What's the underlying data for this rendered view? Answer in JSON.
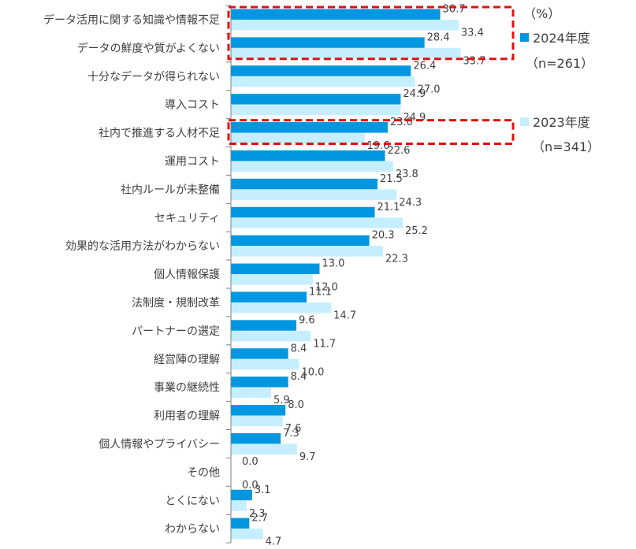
{
  "chart_data": {
    "type": "bar",
    "orientation": "horizontal",
    "unit_label": "（%）",
    "categories": [
      "データ活用に関する知識や情報不足",
      "データの鮮度や質がよくない",
      "十分なデータが得られない",
      "導入コスト",
      "社内で推進する人材不足",
      "運用コスト",
      "社内ルールが未整備",
      "セキュリティ",
      "効果的な活用方法がわからない",
      "個人情報保護",
      "法制度・規制改革",
      "パートナーの選定",
      "経営陣の理解",
      "事業の継続性",
      "利用者の理解",
      "個人情報やプライバシー",
      "その他",
      "とくにない",
      "わからない"
    ],
    "series": [
      {
        "name": "2024年度",
        "sample": "（n=261）",
        "color": "#0097e0",
        "values": [
          30.7,
          28.4,
          26.4,
          24.9,
          23.0,
          22.6,
          21.5,
          21.1,
          20.3,
          13.0,
          11.1,
          9.6,
          8.4,
          8.4,
          8.0,
          7.3,
          0.0,
          3.1,
          2.7
        ]
      },
      {
        "name": "2023年度",
        "sample": "（n=341）",
        "color": "#c5efff",
        "values": [
          33.4,
          33.7,
          27.0,
          24.9,
          19.6,
          23.8,
          24.3,
          25.2,
          22.3,
          12.0,
          14.7,
          11.7,
          10.0,
          5.9,
          7.6,
          9.7,
          0.0,
          2.3,
          4.7
        ]
      }
    ],
    "highlighted_categories": [
      0,
      1,
      4
    ],
    "highlight_color": "#e01010",
    "legend_position": "right",
    "grid": false
  }
}
